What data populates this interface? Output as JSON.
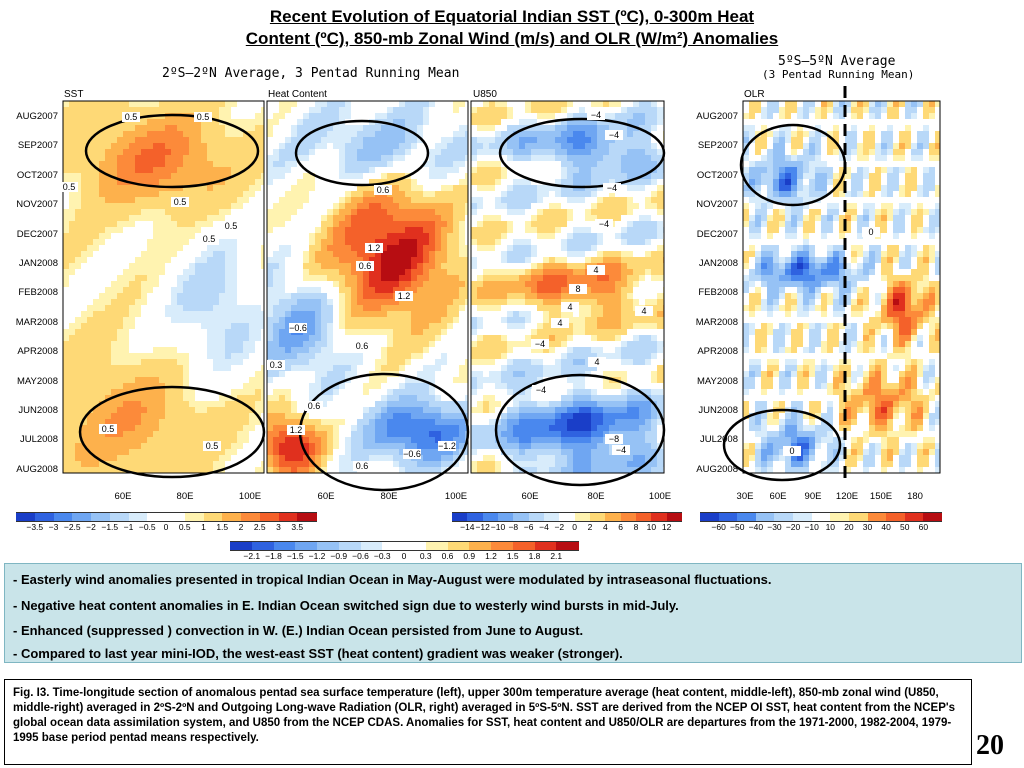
{
  "title_line1": "Recent Evolution of Equatorial Indian SST (ºC), 0-300m Heat",
  "title_line2": "Content (ºC), 850-mb Zonal Wind (m/s) and OLR (W/m²) Anomalies",
  "subtitle_left": "2ºS–2ºN Average, 3 Pentad Running Mean",
  "subtitle_right_1": "5ºS–5ºN Average",
  "subtitle_right_2": "(3 Pentad Running Mean)",
  "time_labels": [
    "AUG2007",
    "SEP2007",
    "OCT2007",
    "NOV2007",
    "DEC2007",
    "JAN2008",
    "FEB2008",
    "MAR2008",
    "APR2008",
    "MAY2008",
    "JUN2008",
    "JUL2008",
    "AUG2008"
  ],
  "panels": [
    {
      "label": "SST",
      "xticks": [
        "60E",
        "80E",
        "100E"
      ]
    },
    {
      "label": "Heat Content",
      "xticks": [
        "60E",
        "80E",
        "100E"
      ]
    },
    {
      "label": "U850",
      "xticks": [
        "60E",
        "80E",
        "100E"
      ]
    },
    {
      "label": "OLR",
      "xticks": [
        "30E",
        "60E",
        "90E",
        "120E",
        "150E",
        "180"
      ]
    }
  ],
  "colorbars": {
    "sst": [
      "−3.5",
      "−3",
      "−2.5",
      "−2",
      "−1.5",
      "−1",
      "−0.5",
      "0",
      "0.5",
      "1",
      "1.5",
      "2",
      "2.5",
      "3",
      "3.5"
    ],
    "u850": [
      "−14",
      "−12",
      "−10",
      "−8",
      "−6",
      "−4",
      "−2",
      "0",
      "2",
      "4",
      "6",
      "8",
      "10",
      "12"
    ],
    "heat": [
      "−2.1",
      "−1.8",
      "−1.5",
      "−1.2",
      "−0.9",
      "−0.6",
      "−0.3",
      "0",
      "0.3",
      "0.6",
      "0.9",
      "1.2",
      "1.5",
      "1.8",
      "2.1"
    ],
    "olr": [
      "−60",
      "−50",
      "−40",
      "−30",
      "−20",
      "−10",
      "10",
      "20",
      "30",
      "40",
      "50",
      "60"
    ]
  },
  "contour_labels": {
    "sst": [
      "0.5",
      "0.5",
      "0.5",
      "0.5",
      "0.5",
      "0.5",
      "0.5",
      "0.5"
    ],
    "heat": [
      "0.6",
      "1.2",
      "0.6",
      "1.2",
      "−0.6",
      "0.6",
      "0.3",
      "0.6",
      "1.2",
      "0.6",
      "−0.6",
      "−1.2"
    ],
    "u850": [
      "−4",
      "−4",
      "−4",
      "−4",
      "4",
      "8",
      "4",
      "4",
      "4",
      "−4",
      "4",
      "−4",
      "−8",
      "−4"
    ],
    "olr": [
      "0",
      "0"
    ]
  },
  "bullets": [
    "- Easterly wind anomalies presented in tropical Indian Ocean in May-August were modulated by intraseasonal fluctuations.",
    "- Negative heat content anomalies in E. Indian Ocean switched sign due to westerly wind bursts in mid-July.",
    "- Enhanced (suppressed ) convection in W. (E.)  Indian Ocean persisted from June to August.",
    "- Compared to last year mini-IOD, the west-east SST (heat content) gradient was weaker (stronger)."
  ],
  "caption": "Fig. I3. Time-longitude section of anomalous pentad sea surface temperature (left), upper 300m temperature average (heat content, middle-left), 850-mb zonal wind (U850, middle-right) averaged in 2ºS-2ºN and Outgoing Long-wave Radiation (OLR, right) averaged in 5ºS-5ºN. SST are derived from the NCEP OI SST, heat content from the NCEP's global ocean data assimilation system, and U850 from the NCEP CDAS.  Anomalies for SST, heat content and U850/OLR are departures from the 1971-2000, 1982-2004, 1979-1995 base period pentad means respectively.",
  "page_number": "20",
  "colors": {
    "cb_blue": [
      "#1a3ec8",
      "#2f62e0",
      "#4a88ee",
      "#6fa6f2",
      "#96c2f5",
      "#b8d8f8",
      "#d8ecfb"
    ],
    "cb_red": [
      "#fff3b0",
      "#fed976",
      "#fdb14c",
      "#fc8a3a",
      "#f4612a",
      "#e0301e",
      "#b70d12"
    ],
    "bullet_bg": "#c9e4e9"
  },
  "chart_data": [
    {
      "type": "heatmap",
      "title": "SST",
      "y_labels": [
        "AUG2007",
        "SEP2007",
        "OCT2007",
        "NOV2007",
        "DEC2007",
        "JAN2008",
        "FEB2008",
        "MAR2008",
        "APR2008",
        "MAY2008",
        "JUN2008",
        "JUL2008",
        "AUG2008"
      ],
      "x_labels": [
        "60E",
        "80E",
        "100E"
      ],
      "units": "ºC"
    },
    {
      "type": "heatmap",
      "title": "Heat Content",
      "y_labels": [
        "AUG2007",
        "SEP2007",
        "OCT2007",
        "NOV2007",
        "DEC2007",
        "JAN2008",
        "FEB2008",
        "MAR2008",
        "APR2008",
        "MAY2008",
        "JUN2008",
        "JUL2008",
        "AUG2008"
      ],
      "x_labels": [
        "60E",
        "80E",
        "100E"
      ],
      "units": "ºC"
    },
    {
      "type": "heatmap",
      "title": "U850",
      "y_labels": [
        "AUG2007",
        "SEP2007",
        "OCT2007",
        "NOV2007",
        "DEC2007",
        "JAN2008",
        "FEB2008",
        "MAR2008",
        "APR2008",
        "MAY2008",
        "JUN2008",
        "JUL2008",
        "AUG2008"
      ],
      "x_labels": [
        "60E",
        "80E",
        "100E"
      ],
      "units": "m/s"
    },
    {
      "type": "heatmap",
      "title": "OLR",
      "y_labels": [
        "AUG2007",
        "SEP2007",
        "OCT2007",
        "NOV2007",
        "DEC2007",
        "JAN2008",
        "FEB2008",
        "MAR2008",
        "APR2008",
        "MAY2008",
        "JUN2008",
        "JUL2008",
        "AUG2008"
      ],
      "x_labels": [
        "30E",
        "60E",
        "90E",
        "120E",
        "150E",
        "180"
      ],
      "units": "W/m²"
    }
  ]
}
